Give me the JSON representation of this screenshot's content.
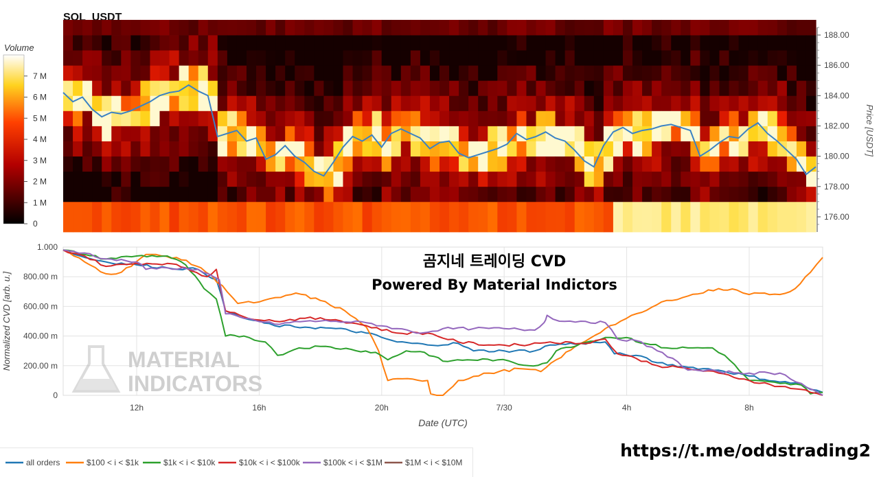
{
  "chart_data": [
    {
      "type": "heatmap",
      "title": "SOL_USDT",
      "ylabel": "Price [USDT]",
      "colorbar_title": "Volume",
      "colorbar_ticks": [
        "0",
        "1 M",
        "2 M",
        "3 M",
        "4 M",
        "5 M",
        "6 M",
        "7 M"
      ],
      "colorbar_range": [
        0,
        8
      ],
      "ylim": [
        175,
        188.5
      ],
      "y_ticks": [
        176,
        178,
        180,
        182,
        184,
        186,
        188
      ],
      "y_tick_labels": [
        "176.00",
        "178.00",
        "180.00",
        "182.00",
        "184.00",
        "186.00",
        "188.00"
      ],
      "price_bins": [
        176,
        177,
        178,
        179,
        180,
        181,
        182,
        183,
        184,
        185,
        186,
        187,
        188
      ],
      "time_columns": 78,
      "price_series": [
        {
          "t": 0,
          "p": 184.2
        },
        {
          "t": 1,
          "p": 183.6
        },
        {
          "t": 2,
          "p": 183.9
        },
        {
          "t": 3,
          "p": 183.1
        },
        {
          "t": 4,
          "p": 182.6
        },
        {
          "t": 5,
          "p": 182.9
        },
        {
          "t": 6,
          "p": 182.8
        },
        {
          "t": 7,
          "p": 183.0
        },
        {
          "t": 8,
          "p": 183.3
        },
        {
          "t": 9,
          "p": 183.6
        },
        {
          "t": 10,
          "p": 184.0
        },
        {
          "t": 11,
          "p": 184.2
        },
        {
          "t": 12,
          "p": 184.3
        },
        {
          "t": 13,
          "p": 184.7
        },
        {
          "t": 14,
          "p": 184.3
        },
        {
          "t": 15,
          "p": 184.0
        },
        {
          "t": 16,
          "p": 181.3
        },
        {
          "t": 17,
          "p": 181.5
        },
        {
          "t": 18,
          "p": 181.7
        },
        {
          "t": 19,
          "p": 181.0
        },
        {
          "t": 20,
          "p": 181.2
        },
        {
          "t": 21,
          "p": 179.8
        },
        {
          "t": 22,
          "p": 180.1
        },
        {
          "t": 23,
          "p": 180.7
        },
        {
          "t": 24,
          "p": 180.0
        },
        {
          "t": 25,
          "p": 179.6
        },
        {
          "t": 26,
          "p": 179.0
        },
        {
          "t": 27,
          "p": 178.7
        },
        {
          "t": 28,
          "p": 179.6
        },
        {
          "t": 29,
          "p": 180.6
        },
        {
          "t": 30,
          "p": 181.3
        },
        {
          "t": 31,
          "p": 181.0
        },
        {
          "t": 32,
          "p": 181.4
        },
        {
          "t": 33,
          "p": 180.6
        },
        {
          "t": 34,
          "p": 181.5
        },
        {
          "t": 35,
          "p": 181.8
        },
        {
          "t": 36,
          "p": 181.5
        },
        {
          "t": 37,
          "p": 181.2
        },
        {
          "t": 38,
          "p": 180.5
        },
        {
          "t": 39,
          "p": 180.9
        },
        {
          "t": 40,
          "p": 181.0
        },
        {
          "t": 41,
          "p": 180.2
        },
        {
          "t": 42,
          "p": 179.9
        },
        {
          "t": 43,
          "p": 180.1
        },
        {
          "t": 44,
          "p": 180.3
        },
        {
          "t": 45,
          "p": 180.5
        },
        {
          "t": 46,
          "p": 180.8
        },
        {
          "t": 47,
          "p": 181.5
        },
        {
          "t": 48,
          "p": 181.1
        },
        {
          "t": 49,
          "p": 181.3
        },
        {
          "t": 50,
          "p": 181.6
        },
        {
          "t": 51,
          "p": 181.2
        },
        {
          "t": 52,
          "p": 181.0
        },
        {
          "t": 53,
          "p": 180.4
        },
        {
          "t": 54,
          "p": 179.7
        },
        {
          "t": 55,
          "p": 179.3
        },
        {
          "t": 56,
          "p": 180.7
        },
        {
          "t": 57,
          "p": 181.6
        },
        {
          "t": 58,
          "p": 181.9
        },
        {
          "t": 59,
          "p": 181.5
        },
        {
          "t": 60,
          "p": 181.7
        },
        {
          "t": 61,
          "p": 181.8
        },
        {
          "t": 62,
          "p": 182.0
        },
        {
          "t": 63,
          "p": 182.1
        },
        {
          "t": 64,
          "p": 181.9
        },
        {
          "t": 65,
          "p": 181.7
        },
        {
          "t": 66,
          "p": 180.0
        },
        {
          "t": 67,
          "p": 180.4
        },
        {
          "t": 68,
          "p": 180.9
        },
        {
          "t": 69,
          "p": 181.3
        },
        {
          "t": 70,
          "p": 181.2
        },
        {
          "t": 71,
          "p": 181.8
        },
        {
          "t": 72,
          "p": 182.2
        },
        {
          "t": 73,
          "p": 181.5
        },
        {
          "t": 74,
          "p": 181.0
        },
        {
          "t": 75,
          "p": 180.4
        },
        {
          "t": 76,
          "p": 179.8
        },
        {
          "t": 77,
          "p": 178.8
        },
        {
          "t": 78,
          "p": 179.3
        }
      ]
    },
    {
      "type": "line",
      "title": "곰지네 트레이딩 CVD",
      "subtitle": "Powered By Material Indictors",
      "xlabel": "Date (UTC)",
      "ylabel": "Normalized CVD [arb. u.]",
      "ylim": [
        0,
        1
      ],
      "xlim": [
        9.6,
        34.4
      ],
      "y_ticks": [
        0,
        0.2,
        0.4,
        0.6,
        0.8,
        1.0
      ],
      "y_tick_labels": [
        "0",
        "200.00 m",
        "400.00 m",
        "600.00 m",
        "800.00 m",
        "1.000"
      ],
      "x_ticks": [
        12,
        16,
        20,
        24,
        28,
        32
      ],
      "x_tick_labels": [
        "12h",
        "16h",
        "20h",
        "7/30",
        "4h",
        "8h"
      ],
      "watermark": [
        "MATERIAL",
        "INDICATORS"
      ],
      "series": [
        {
          "name": "all orders",
          "color": "#1f77b4",
          "points": [
            [
              9.6,
              0.98
            ],
            [
              10.3,
              0.93
            ],
            [
              11.0,
              0.9
            ],
            [
              12.0,
              0.88
            ],
            [
              13.0,
              0.86
            ],
            [
              14.0,
              0.85
            ],
            [
              14.6,
              0.78
            ],
            [
              14.9,
              0.57
            ],
            [
              15.5,
              0.52
            ],
            [
              16.5,
              0.47
            ],
            [
              17.5,
              0.46
            ],
            [
              18.5,
              0.45
            ],
            [
              19.5,
              0.42
            ],
            [
              20.5,
              0.36
            ],
            [
              21.5,
              0.34
            ],
            [
              22.5,
              0.35
            ],
            [
              23.0,
              0.3
            ],
            [
              24.0,
              0.3
            ],
            [
              25.0,
              0.3
            ],
            [
              25.5,
              0.34
            ],
            [
              26.5,
              0.35
            ],
            [
              27.3,
              0.36
            ],
            [
              27.6,
              0.28
            ],
            [
              28.3,
              0.27
            ],
            [
              29.0,
              0.22
            ],
            [
              30.0,
              0.19
            ],
            [
              31.0,
              0.17
            ],
            [
              32.0,
              0.13
            ],
            [
              33.0,
              0.09
            ],
            [
              33.7,
              0.08
            ],
            [
              34.0,
              0.04
            ],
            [
              34.4,
              0.02
            ]
          ]
        },
        {
          "name": "$100 < i < $1k",
          "color": "#ff7f0e",
          "points": [
            [
              9.6,
              0.98
            ],
            [
              10.3,
              0.9
            ],
            [
              11.0,
              0.82
            ],
            [
              11.5,
              0.83
            ],
            [
              12.3,
              0.95
            ],
            [
              13.3,
              0.93
            ],
            [
              14.1,
              0.86
            ],
            [
              14.8,
              0.74
            ],
            [
              15.3,
              0.62
            ],
            [
              16.0,
              0.63
            ],
            [
              16.7,
              0.66
            ],
            [
              17.2,
              0.69
            ],
            [
              18.0,
              0.64
            ],
            [
              18.8,
              0.57
            ],
            [
              19.5,
              0.46
            ],
            [
              19.9,
              0.3
            ],
            [
              20.2,
              0.1
            ],
            [
              21.0,
              0.11
            ],
            [
              21.5,
              0.1
            ],
            [
              21.6,
              0.01
            ],
            [
              22.0,
              0.0
            ],
            [
              22.5,
              0.1
            ],
            [
              23.5,
              0.15
            ],
            [
              24.5,
              0.18
            ],
            [
              25.2,
              0.16
            ],
            [
              25.7,
              0.24
            ],
            [
              26.5,
              0.35
            ],
            [
              27.3,
              0.45
            ],
            [
              27.8,
              0.5
            ],
            [
              28.5,
              0.56
            ],
            [
              29.3,
              0.64
            ],
            [
              30.0,
              0.67
            ],
            [
              31.0,
              0.72
            ],
            [
              31.6,
              0.71
            ],
            [
              32.0,
              0.68
            ],
            [
              32.5,
              0.69
            ],
            [
              33.0,
              0.68
            ],
            [
              33.5,
              0.72
            ],
            [
              34.0,
              0.83
            ],
            [
              34.4,
              0.93
            ]
          ]
        },
        {
          "name": "$1k < i < $10k",
          "color": "#2ca02c",
          "points": [
            [
              9.6,
              0.98
            ],
            [
              10.3,
              0.95
            ],
            [
              11.0,
              0.92
            ],
            [
              12.0,
              0.94
            ],
            [
              13.0,
              0.94
            ],
            [
              13.6,
              0.88
            ],
            [
              14.2,
              0.72
            ],
            [
              14.6,
              0.65
            ],
            [
              14.9,
              0.4
            ],
            [
              15.5,
              0.4
            ],
            [
              16.2,
              0.36
            ],
            [
              16.6,
              0.27
            ],
            [
              17.3,
              0.32
            ],
            [
              18.0,
              0.33
            ],
            [
              19.0,
              0.31
            ],
            [
              19.8,
              0.29
            ],
            [
              20.2,
              0.24
            ],
            [
              20.8,
              0.3
            ],
            [
              21.4,
              0.29
            ],
            [
              22.0,
              0.23
            ],
            [
              22.8,
              0.24
            ],
            [
              23.8,
              0.24
            ],
            [
              24.8,
              0.2
            ],
            [
              25.4,
              0.22
            ],
            [
              25.7,
              0.3
            ],
            [
              26.5,
              0.35
            ],
            [
              27.3,
              0.39
            ],
            [
              28.0,
              0.39
            ],
            [
              28.6,
              0.35
            ],
            [
              29.3,
              0.32
            ],
            [
              30.0,
              0.32
            ],
            [
              30.8,
              0.32
            ],
            [
              31.2,
              0.27
            ],
            [
              32.0,
              0.1
            ],
            [
              33.0,
              0.08
            ],
            [
              33.7,
              0.07
            ],
            [
              34.0,
              0.01
            ],
            [
              34.4,
              0.02
            ]
          ]
        },
        {
          "name": "$10k < i < $100k",
          "color": "#d62728",
          "points": [
            [
              9.6,
              0.98
            ],
            [
              10.3,
              0.94
            ],
            [
              11.0,
              0.87
            ],
            [
              12.0,
              0.89
            ],
            [
              13.0,
              0.89
            ],
            [
              13.6,
              0.86
            ],
            [
              14.3,
              0.8
            ],
            [
              14.6,
              0.85
            ],
            [
              14.9,
              0.57
            ],
            [
              15.5,
              0.53
            ],
            [
              16.5,
              0.5
            ],
            [
              17.5,
              0.52
            ],
            [
              18.5,
              0.51
            ],
            [
              19.5,
              0.47
            ],
            [
              20.5,
              0.42
            ],
            [
              21.5,
              0.42
            ],
            [
              22.5,
              0.36
            ],
            [
              23.5,
              0.34
            ],
            [
              24.5,
              0.34
            ],
            [
              25.5,
              0.36
            ],
            [
              26.5,
              0.35
            ],
            [
              27.3,
              0.38
            ],
            [
              27.7,
              0.28
            ],
            [
              28.3,
              0.25
            ],
            [
              29.0,
              0.2
            ],
            [
              30.0,
              0.18
            ],
            [
              31.0,
              0.15
            ],
            [
              32.0,
              0.1
            ],
            [
              33.0,
              0.06
            ],
            [
              33.7,
              0.04
            ],
            [
              34.0,
              0.02
            ],
            [
              34.4,
              0.0
            ]
          ]
        },
        {
          "name": "$100k < i < $1M",
          "color": "#9467bd",
          "points": [
            [
              9.6,
              0.98
            ],
            [
              10.3,
              0.96
            ],
            [
              11.0,
              0.92
            ],
            [
              12.0,
              0.9
            ],
            [
              12.3,
              0.85
            ],
            [
              13.0,
              0.86
            ],
            [
              14.0,
              0.85
            ],
            [
              14.7,
              0.78
            ],
            [
              14.9,
              0.55
            ],
            [
              15.5,
              0.52
            ],
            [
              16.5,
              0.48
            ],
            [
              17.5,
              0.5
            ],
            [
              18.5,
              0.5
            ],
            [
              19.5,
              0.49
            ],
            [
              20.5,
              0.45
            ],
            [
              21.3,
              0.42
            ],
            [
              22.0,
              0.45
            ],
            [
              23.0,
              0.45
            ],
            [
              24.0,
              0.45
            ],
            [
              25.0,
              0.44
            ],
            [
              25.3,
              0.49
            ],
            [
              25.4,
              0.54
            ],
            [
              25.8,
              0.5
            ],
            [
              26.5,
              0.5
            ],
            [
              27.3,
              0.49
            ],
            [
              27.7,
              0.38
            ],
            [
              28.3,
              0.37
            ],
            [
              29.0,
              0.3
            ],
            [
              29.5,
              0.25
            ],
            [
              30.0,
              0.17
            ],
            [
              31.0,
              0.16
            ],
            [
              32.0,
              0.15
            ],
            [
              33.0,
              0.15
            ],
            [
              33.7,
              0.08
            ],
            [
              34.4,
              0.0
            ]
          ]
        },
        {
          "name": "$1M < i < $10M",
          "color": "#8c564b",
          "points": []
        }
      ]
    }
  ],
  "footer": {
    "url": "https://t.me/oddstrading2"
  }
}
